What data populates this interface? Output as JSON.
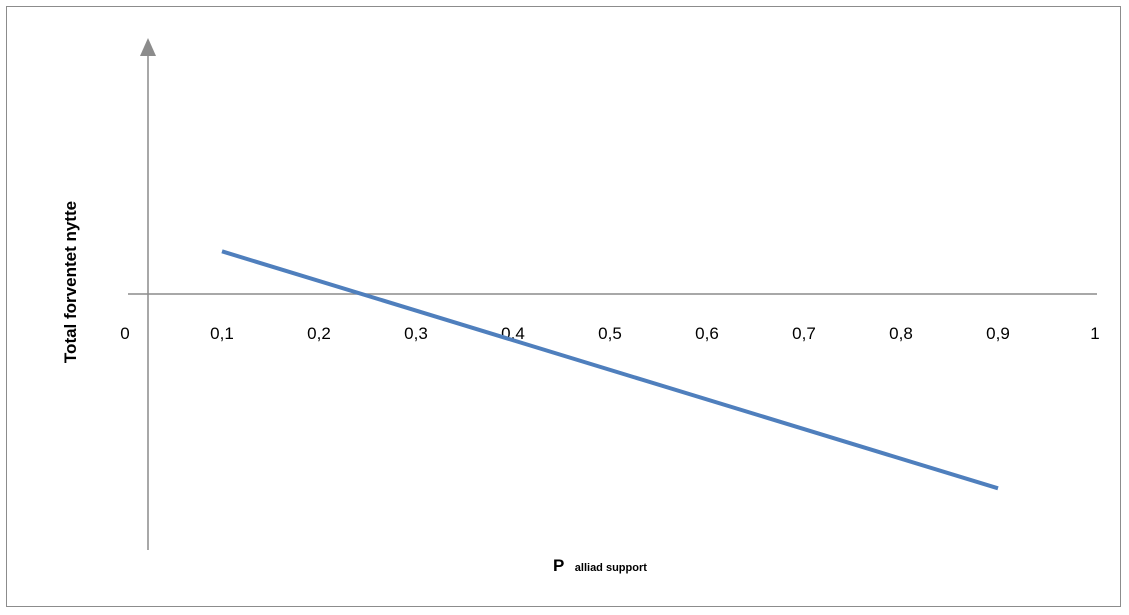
{
  "chart_data": {
    "type": "line",
    "ylabel": "Total forventet nytte",
    "xlabel_main": "P",
    "xlabel_sub": "alliad support",
    "tick_labels": [
      "0",
      "0,1",
      "0,2",
      "0,3",
      "0,4",
      "0,5",
      "0,6",
      "0,7",
      "0,8",
      "0,9",
      "1"
    ],
    "xlim": [
      0,
      1
    ],
    "series": [
      {
        "x": [
          0.1,
          0.9
        ],
        "y": [
          0.18,
          -0.82
        ]
      }
    ],
    "colors": {
      "line": "#4f7fbd",
      "axis": "#8c8c8c"
    },
    "grid": false
  }
}
